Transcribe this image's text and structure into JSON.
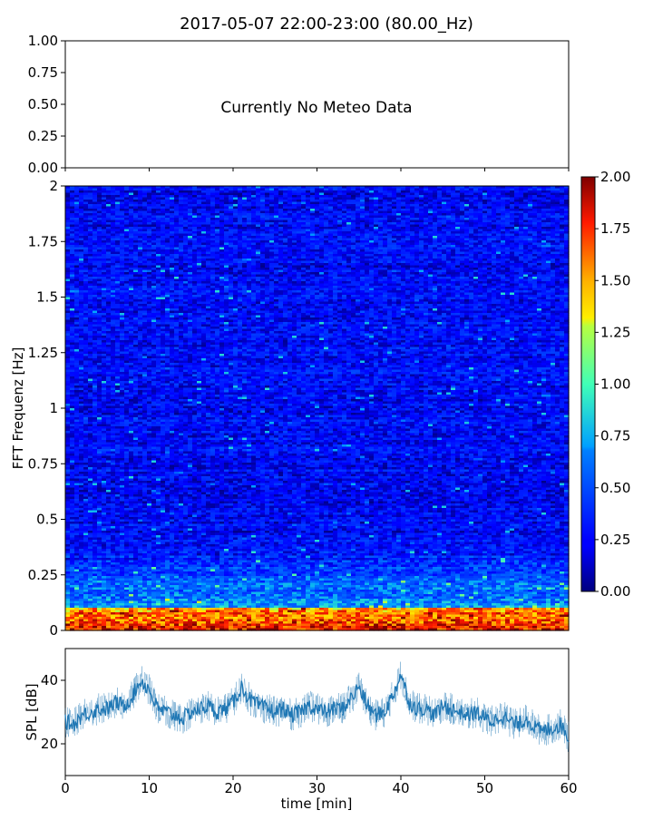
{
  "chart_data": [
    {
      "type": "text",
      "title": "2017-05-07 22:00-23:00 (80.00_Hz)",
      "message": "Currently No Meteo Data",
      "ylim": [
        0,
        1
      ],
      "yticks": [
        "0.00",
        "0.25",
        "0.50",
        "0.75",
        "1.00"
      ],
      "xlim": [
        0,
        60
      ],
      "xticks": [
        0,
        10,
        20,
        30,
        40,
        50,
        60
      ]
    },
    {
      "type": "heatmap",
      "ylabel": "FFT Frequenz [Hz]",
      "ylim": [
        0,
        2
      ],
      "yticks": [
        "0",
        "0.25",
        "0.5",
        "0.75",
        "1",
        "1.25",
        "1.5",
        "1.75",
        "2"
      ],
      "xlim": [
        0,
        60
      ],
      "colormap": "jet",
      "colorbar": {
        "range": [
          0,
          2
        ],
        "ticks": [
          "0.00",
          "0.25",
          "0.50",
          "0.75",
          "1.00",
          "1.25",
          "1.50",
          "1.75",
          "2.00"
        ]
      },
      "description_profile": {
        "low_freq_band_hz": [
          0,
          0.1
        ],
        "low_freq_band_level": [
          1.4,
          2.0
        ],
        "mid_freq_level": [
          0.3,
          0.7
        ],
        "high_freq_level": [
          0.15,
          0.45
        ]
      }
    },
    {
      "type": "line",
      "ylabel": "SPL [dB]",
      "xlabel": "time [min]",
      "xlim": [
        0,
        60
      ],
      "ylim": [
        10,
        50
      ],
      "xticks": [
        "0",
        "10",
        "20",
        "30",
        "40",
        "50",
        "60"
      ],
      "yticks": [
        "20",
        "40"
      ],
      "color": "#1f77b4",
      "series": [
        {
          "x": [
            0,
            1,
            2,
            3,
            4,
            5,
            6,
            7,
            8,
            9,
            10,
            11,
            12,
            13,
            14,
            15,
            16,
            17,
            18,
            19,
            20,
            21,
            22,
            23,
            24,
            25,
            26,
            27,
            28,
            29,
            30,
            31,
            32,
            33,
            34,
            35,
            36,
            37,
            38,
            39,
            40,
            41,
            42,
            43,
            44,
            45,
            46,
            47,
            48,
            49,
            50,
            51,
            52,
            53,
            54,
            55,
            56,
            57,
            58,
            59,
            60
          ],
          "y": [
            27,
            26,
            29,
            30,
            31,
            31,
            33,
            32,
            35,
            40,
            37,
            31,
            30,
            29,
            28,
            30,
            31,
            32,
            30,
            31,
            33,
            38,
            34,
            32,
            31,
            30,
            31,
            29,
            30,
            32,
            31,
            30,
            31,
            31,
            34,
            38,
            32,
            29,
            30,
            35,
            42,
            33,
            31,
            31,
            29,
            32,
            31,
            30,
            29,
            30,
            28,
            27,
            29,
            27,
            26,
            28,
            25,
            24,
            25,
            26,
            22
          ]
        }
      ]
    }
  ]
}
